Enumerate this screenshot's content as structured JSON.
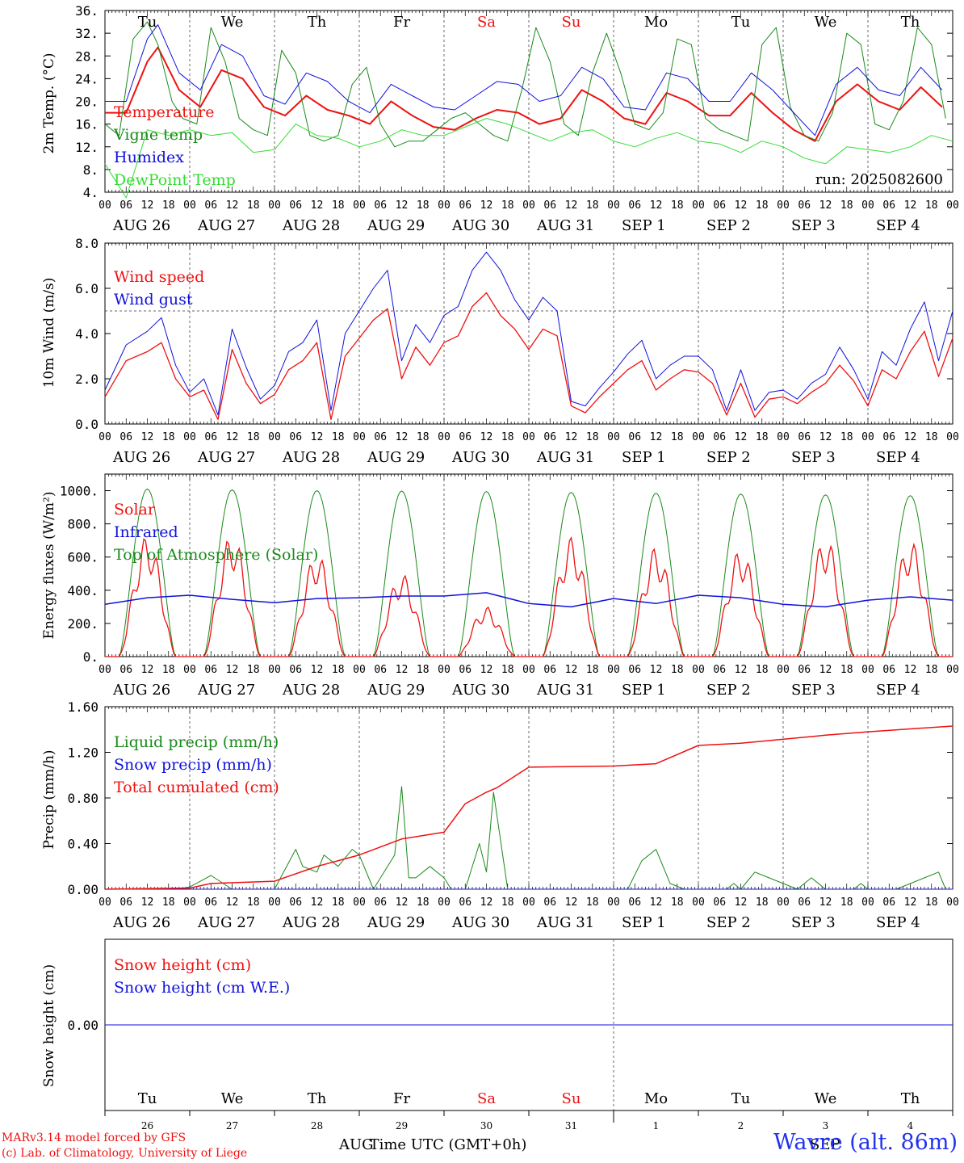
{
  "chart_data": [
    {
      "type": "line",
      "ylabel": "2m Temp. (°C)",
      "ylim": [
        4,
        36
      ],
      "yticks": [
        "4.",
        "8.",
        "12.",
        "16.",
        "20.",
        "24.",
        "28.",
        "32.",
        "36."
      ],
      "weekdays": [
        "Tu",
        "We",
        "Th",
        "Fr",
        "Sa",
        "Su",
        "Mo",
        "Tu",
        "We",
        "Th"
      ],
      "weekday_colors": [
        "#000000",
        "#000000",
        "#000000",
        "#000000",
        "#ee1111",
        "#ee1111",
        "#000000",
        "#000000",
        "#000000",
        "#000000"
      ],
      "annotation": "run: 2025082600",
      "series": [
        {
          "name": "Temperature",
          "color": "#ee1111",
          "width": 2,
          "hours": [
            0,
            6,
            12,
            15,
            21,
            27,
            33,
            39,
            45,
            51,
            57,
            63,
            69,
            75,
            81,
            87,
            93,
            99,
            105,
            111,
            117,
            123,
            129,
            135,
            141,
            147,
            153,
            159,
            165,
            171,
            177,
            183,
            189,
            195,
            201,
            207,
            213,
            219,
            225,
            231,
            237
          ],
          "values": [
            18,
            18,
            27,
            29.5,
            22,
            19,
            25.5,
            24,
            19,
            17.5,
            21,
            18.5,
            17.5,
            16,
            20,
            17.5,
            15.5,
            15,
            17,
            18.5,
            18,
            16,
            17,
            22,
            20,
            17,
            16,
            21.5,
            20,
            17.5,
            17.5,
            21.5,
            18,
            15,
            13,
            20,
            23,
            20,
            18.5,
            22.5,
            19
          ]
        },
        {
          "name": "Vigne temp",
          "color": "#1a8a1a",
          "width": 1,
          "hours": [
            0,
            4,
            8,
            12,
            15,
            19,
            22,
            26,
            30,
            34,
            38,
            42,
            46,
            50,
            54,
            58,
            62,
            66,
            70,
            74,
            78,
            82,
            86,
            90,
            94,
            98,
            102,
            106,
            110,
            114,
            118,
            122,
            126,
            130,
            134,
            138,
            142,
            146,
            150,
            154,
            158,
            162,
            166,
            170,
            174,
            178,
            182,
            186,
            190,
            194,
            198,
            202,
            206,
            210,
            214,
            218,
            222,
            226,
            230,
            234,
            238
          ],
          "values": [
            16,
            14,
            31,
            34,
            30,
            20,
            17,
            16,
            33,
            27,
            17,
            15,
            14,
            29,
            25,
            14,
            13,
            14,
            23,
            26,
            16,
            12,
            13,
            13,
            15,
            17,
            18,
            16,
            14,
            13,
            22,
            33,
            27,
            16,
            14,
            25,
            32,
            25,
            16,
            15,
            18,
            31,
            30,
            17,
            15,
            14,
            13,
            30,
            33,
            19,
            14,
            13,
            18,
            32,
            30,
            16,
            15,
            20,
            33,
            30,
            17
          ]
        },
        {
          "name": "Humidex",
          "color": "#1111dd",
          "width": 1,
          "hours": [
            0,
            6,
            12,
            15,
            21,
            27,
            33,
            39,
            45,
            51,
            57,
            63,
            69,
            75,
            81,
            87,
            93,
            99,
            105,
            111,
            117,
            123,
            129,
            135,
            141,
            147,
            153,
            159,
            165,
            171,
            177,
            183,
            189,
            195,
            201,
            207,
            213,
            219,
            225,
            231,
            237
          ],
          "values": [
            20,
            20,
            31,
            33.5,
            25,
            22,
            30,
            28,
            21,
            19.5,
            25,
            23.5,
            20,
            18,
            23,
            21,
            19,
            18.5,
            21,
            23.5,
            23,
            20,
            21,
            26,
            24,
            19,
            18.5,
            25,
            24,
            20,
            20,
            25,
            22,
            18,
            14,
            23,
            26,
            22,
            21,
            26,
            22
          ]
        },
        {
          "name": "DewPoint Temp",
          "color": "#33dd33",
          "width": 1,
          "hours": [
            0,
            6,
            12,
            18,
            24,
            30,
            36,
            42,
            48,
            54,
            60,
            66,
            72,
            78,
            84,
            90,
            96,
            102,
            108,
            114,
            120,
            126,
            132,
            138,
            144,
            150,
            156,
            162,
            168,
            174,
            180,
            186,
            192,
            198,
            204,
            210,
            216,
            222,
            228,
            234,
            240
          ],
          "values": [
            9,
            3,
            15,
            14,
            15,
            14,
            14.5,
            11,
            11.5,
            16,
            14,
            13.5,
            12,
            13,
            15,
            14,
            14,
            15.5,
            17,
            16,
            14.5,
            13,
            14.5,
            15,
            13,
            12,
            13.5,
            14.5,
            13,
            12.5,
            11,
            13,
            12,
            10,
            9,
            12,
            11.5,
            11,
            12,
            14,
            13
          ]
        }
      ]
    },
    {
      "type": "line",
      "ylabel": "10m Wind (m/s)",
      "ylim": [
        0,
        8
      ],
      "yticks": [
        "0.0",
        "2.0",
        "4.0",
        "6.0",
        "8.0"
      ],
      "reference_line": 5.0,
      "series": [
        {
          "name": "Wind speed",
          "color": "#ee1111",
          "width": 1.3,
          "hours": [
            0,
            6,
            12,
            16,
            20,
            24,
            28,
            32,
            36,
            40,
            44,
            48,
            52,
            56,
            60,
            64,
            68,
            72,
            76,
            80,
            84,
            88,
            92,
            96,
            100,
            104,
            108,
            112,
            116,
            120,
            124,
            128,
            132,
            136,
            140,
            144,
            148,
            152,
            156,
            160,
            164,
            168,
            172,
            176,
            180,
            184,
            188,
            192,
            196,
            200,
            204,
            208,
            212,
            216,
            220,
            224,
            228,
            232,
            236,
            240
          ],
          "values": [
            1.2,
            2.8,
            3.2,
            3.6,
            2.0,
            1.2,
            1.5,
            0.2,
            3.3,
            1.8,
            0.9,
            1.3,
            2.4,
            2.8,
            3.6,
            0.2,
            3.0,
            3.8,
            4.6,
            5.1,
            2.0,
            3.4,
            2.6,
            3.6,
            3.9,
            5.2,
            5.8,
            4.8,
            4.2,
            3.3,
            4.2,
            3.9,
            0.8,
            0.5,
            1.2,
            1.8,
            2.4,
            2.8,
            1.5,
            2.0,
            2.4,
            2.3,
            1.8,
            0.4,
            1.8,
            0.3,
            1.1,
            1.2,
            0.9,
            1.4,
            1.8,
            2.6,
            1.9,
            0.8,
            2.4,
            2.0,
            3.2,
            4.1,
            2.1,
            3.8
          ]
        },
        {
          "name": "Wind gust",
          "color": "#1111dd",
          "width": 1,
          "hours": [
            0,
            6,
            12,
            16,
            20,
            24,
            28,
            32,
            36,
            40,
            44,
            48,
            52,
            56,
            60,
            64,
            68,
            72,
            76,
            80,
            84,
            88,
            92,
            96,
            100,
            104,
            108,
            112,
            116,
            120,
            124,
            128,
            132,
            136,
            140,
            144,
            148,
            152,
            156,
            160,
            164,
            168,
            172,
            176,
            180,
            184,
            188,
            192,
            196,
            200,
            204,
            208,
            212,
            216,
            220,
            224,
            228,
            232,
            236,
            240
          ],
          "values": [
            1.5,
            3.5,
            4.1,
            4.7,
            2.6,
            1.4,
            2.0,
            0.4,
            4.2,
            2.5,
            1.1,
            1.7,
            3.2,
            3.6,
            4.6,
            0.6,
            4.0,
            5.0,
            6.0,
            6.8,
            2.8,
            4.4,
            3.6,
            4.8,
            5.2,
            6.8,
            7.6,
            6.8,
            5.5,
            4.6,
            5.6,
            5.0,
            1.0,
            0.8,
            1.6,
            2.3,
            3.1,
            3.7,
            2.0,
            2.6,
            3.0,
            3.0,
            2.4,
            0.6,
            2.4,
            0.6,
            1.4,
            1.5,
            1.1,
            1.8,
            2.2,
            3.4,
            2.4,
            1.1,
            3.2,
            2.6,
            4.2,
            5.4,
            2.8,
            5.0
          ]
        }
      ]
    },
    {
      "type": "line",
      "ylabel": "Energy fluxes (W/m²)",
      "ylim": [
        0,
        1100
      ],
      "yticks": [
        "0.",
        "200.",
        "400.",
        "600.",
        "800.",
        "1000."
      ],
      "series": [
        {
          "name": "Solar",
          "color": "#ee1111",
          "width": 1.3,
          "day_peaks": [
            730,
            740,
            620,
            500,
            300,
            720,
            660,
            650,
            720,
            700
          ]
        },
        {
          "name": "Infrared",
          "color": "#1111dd",
          "width": 1.5,
          "hours": [
            0,
            12,
            24,
            36,
            48,
            60,
            72,
            84,
            96,
            108,
            120,
            132,
            144,
            156,
            168,
            180,
            192,
            204,
            216,
            228,
            240
          ],
          "values": [
            315,
            355,
            370,
            345,
            325,
            350,
            355,
            365,
            365,
            385,
            320,
            300,
            350,
            320,
            370,
            355,
            315,
            300,
            340,
            360,
            340
          ]
        },
        {
          "name": "Top of Atmosphere (Solar)",
          "color": "#1a8a1a",
          "width": 1,
          "day_peaks": [
            1010,
            1005,
            1000,
            998,
            995,
            990,
            985,
            980,
            975,
            970
          ]
        }
      ]
    },
    {
      "type": "line",
      "ylabel": "Precip (mm/h)",
      "ylim": [
        0,
        1.6
      ],
      "yticks": [
        "0.00",
        "0.40",
        "0.80",
        "1.20",
        "1.60"
      ],
      "series": [
        {
          "name": "Liquid precip (mm/h)",
          "color": "#1a8a1a",
          "width": 1,
          "hours": [
            0,
            20,
            24,
            30,
            36,
            48,
            54,
            56,
            60,
            62,
            66,
            70,
            72,
            76,
            78,
            82,
            84,
            86,
            88,
            92,
            96,
            98,
            102,
            106,
            108,
            110,
            114,
            120,
            124,
            128,
            134,
            148,
            152,
            156,
            160,
            164,
            176,
            178,
            180,
            184,
            188,
            196,
            200,
            204,
            212,
            214,
            216,
            224,
            232,
            236,
            238,
            240
          ],
          "values": [
            0,
            0,
            0.02,
            0.12,
            0.0,
            0,
            0.35,
            0.2,
            0.15,
            0.3,
            0.2,
            0.35,
            0.3,
            0.0,
            0.1,
            0.3,
            0.9,
            0.1,
            0.1,
            0.2,
            0.1,
            0.0,
            0,
            0.4,
            0.15,
            0.85,
            0.0,
            0,
            0,
            0,
            0,
            0,
            0.25,
            0.35,
            0.05,
            0.0,
            0.0,
            0.05,
            0.0,
            0.15,
            0.1,
            0.0,
            0.1,
            0.0,
            0,
            0.05,
            0.0,
            0,
            0.1,
            0.15,
            0.0,
            0.0
          ]
        },
        {
          "name": "Snow precip (mm/h)",
          "color": "#1111dd",
          "width": 1,
          "hours": [
            0,
            240
          ],
          "values": [
            0,
            0
          ]
        },
        {
          "name": "Total cumulated (cm)",
          "color": "#ee1111",
          "width": 1.5,
          "hours": [
            0,
            24,
            30,
            48,
            60,
            72,
            84,
            96,
            102,
            108,
            111,
            120,
            144,
            156,
            168,
            180,
            204,
            216,
            240
          ],
          "values": [
            0,
            0.01,
            0.05,
            0.07,
            0.2,
            0.3,
            0.44,
            0.5,
            0.75,
            0.85,
            0.89,
            1.07,
            1.08,
            1.1,
            1.26,
            1.28,
            1.35,
            1.38,
            1.43
          ]
        }
      ]
    },
    {
      "type": "line",
      "ylabel": "Snow height (cm)",
      "yticks": [
        "0.00"
      ],
      "series": [
        {
          "name": "Snow height (cm)",
          "color": "#ee1111",
          "width": 1,
          "hours": [
            0,
            240
          ],
          "values": [
            0,
            0
          ]
        },
        {
          "name": "Snow height (cm W.E.)",
          "color": "#1111dd",
          "width": 1,
          "hours": [
            0,
            240
          ],
          "values": [
            0,
            0
          ]
        }
      ],
      "weekdays": [
        "Tu",
        "We",
        "Th",
        "Fr",
        "Sa",
        "Su",
        "Mo",
        "Tu",
        "We",
        "Th"
      ],
      "daynums": [
        "26",
        "27",
        "28",
        "29",
        "30",
        "31",
        "1",
        "2",
        "3",
        "4"
      ],
      "month_labels": [
        "AUG",
        "SEP"
      ]
    }
  ],
  "x_axis": {
    "hour_ticks": [
      "00",
      "06",
      "12",
      "18"
    ],
    "end_tick": "00",
    "date_labels": [
      "AUG 26",
      "AUG 27",
      "AUG 28",
      "AUG 29",
      "AUG 30",
      "AUG 31",
      "SEP  1",
      "SEP  2",
      "SEP  3",
      "SEP  4"
    ],
    "xlabel": "Time UTC (GMT+0h)"
  },
  "footer": {
    "model": "MARv3.14 model forced by GFS",
    "copyright": "(c) Lab. of Climatology, University of Liege",
    "location": "Wavre (alt. 86m)"
  },
  "colors": {
    "red": "#ee1111",
    "blue": "#1111dd",
    "green": "#1a8a1a",
    "light_green": "#33dd33"
  }
}
